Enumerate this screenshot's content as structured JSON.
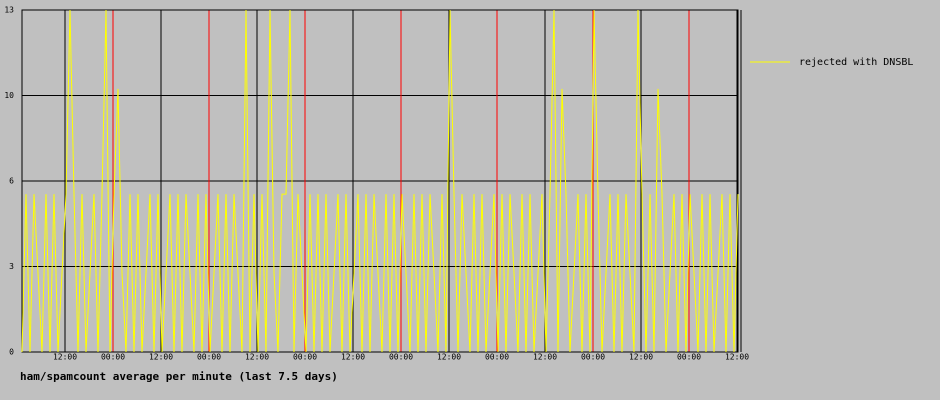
{
  "chart_data": {
    "type": "line",
    "title": "ham/spamcount average per minute (last 7.5 days)",
    "x": [
      0,
      1,
      2,
      3,
      4,
      5,
      6,
      7,
      8,
      9,
      10,
      11,
      12,
      13,
      14,
      15,
      16,
      17,
      18,
      19,
      20,
      21,
      22,
      23,
      24,
      25,
      26,
      27,
      28,
      29,
      30,
      31,
      32,
      33,
      34,
      35,
      36,
      37,
      38,
      39,
      40,
      41,
      42,
      43,
      44,
      45,
      46,
      47,
      48,
      49,
      50,
      51,
      52,
      53,
      54,
      55,
      56,
      57,
      58,
      59,
      60,
      61,
      62,
      63,
      64,
      65,
      66,
      67,
      68,
      69,
      70,
      71,
      72,
      73,
      74,
      75,
      76,
      77,
      78,
      79,
      80,
      81,
      82,
      83,
      84,
      85,
      86,
      87,
      88,
      89,
      90,
      91,
      92,
      93,
      94,
      95,
      96,
      97,
      98,
      99,
      100,
      101,
      102,
      103,
      104,
      105,
      106,
      107,
      108,
      109,
      110,
      111,
      112,
      113,
      114,
      115,
      116,
      117,
      118,
      119,
      120,
      121,
      122,
      123,
      124,
      125,
      126,
      127,
      128,
      129,
      130,
      131,
      132,
      133,
      134,
      135,
      136,
      137,
      138,
      139,
      140,
      141,
      142,
      143,
      144,
      145,
      146,
      147,
      148,
      149,
      150,
      151,
      152,
      153,
      154,
      155,
      156,
      157,
      158,
      159,
      160,
      161,
      162,
      163,
      164,
      165,
      166,
      167,
      168,
      169,
      170,
      171,
      172,
      173,
      174,
      175,
      176,
      177,
      178,
      179
    ],
    "series": [
      {
        "name": "rejected with DNSBL",
        "color": "#ffff00",
        "values": [
          0,
          6,
          0,
          6,
          3,
          0,
          6,
          0,
          6,
          0,
          3,
          6,
          13,
          6,
          0,
          6,
          0,
          3,
          6,
          0,
          6,
          13,
          0,
          6,
          10,
          3,
          0,
          6,
          0,
          6,
          0,
          3,
          6,
          0,
          6,
          0,
          3,
          6,
          0,
          6,
          0,
          6,
          3,
          0,
          6,
          0,
          6,
          0,
          3,
          6,
          0,
          6,
          0,
          6,
          3,
          0,
          13,
          0,
          6,
          0,
          6,
          0,
          13,
          3,
          0,
          6,
          6,
          13,
          0,
          6,
          3,
          0,
          6,
          0,
          6,
          0,
          6,
          0,
          3,
          6,
          0,
          6,
          0,
          3,
          6,
          0,
          6,
          0,
          6,
          3,
          0,
          6,
          0,
          6,
          0,
          6,
          3,
          0,
          6,
          0,
          6,
          0,
          6,
          3,
          0,
          6,
          0,
          13,
          6,
          0,
          6,
          3,
          0,
          6,
          0,
          6,
          0,
          3,
          6,
          0,
          6,
          0,
          6,
          3,
          0,
          6,
          0,
          6,
          0,
          3,
          6,
          0,
          6,
          13,
          0,
          10,
          6,
          0,
          3,
          6,
          0,
          6,
          0,
          13,
          6,
          0,
          3,
          6,
          0,
          6,
          0,
          6,
          3,
          0,
          13,
          6,
          0,
          6,
          0,
          10,
          6,
          0,
          3,
          6,
          0,
          6,
          0,
          6,
          3,
          0,
          6,
          0,
          6,
          0,
          3,
          6,
          0,
          6,
          0,
          6
        ]
      }
    ],
    "xlim": [
      0,
      179
    ],
    "xticks": [
      {
        "value": 10.75,
        "label": "12:00"
      },
      {
        "value": 22.75,
        "label": "00:00"
      },
      {
        "value": 34.75,
        "label": "12:00"
      },
      {
        "value": 46.75,
        "label": "00:00"
      },
      {
        "value": 58.75,
        "label": "12:00"
      },
      {
        "value": 70.75,
        "label": "00:00"
      },
      {
        "value": 82.75,
        "label": "12:00"
      },
      {
        "value": 94.75,
        "label": "00:00"
      },
      {
        "value": 106.75,
        "label": "12:00"
      },
      {
        "value": 118.75,
        "label": "00:00"
      },
      {
        "value": 130.75,
        "label": "12:00"
      },
      {
        "value": 142.75,
        "label": "00:00"
      },
      {
        "value": 154.75,
        "label": "12:00"
      },
      {
        "value": 166.75,
        "label": "00:00"
      },
      {
        "value": 178.75,
        "label": "12:00"
      }
    ],
    "xgrid_colors": [
      "#000000",
      "#ff0000"
    ],
    "ylim": [
      0,
      13
    ],
    "yticks": [
      0,
      {
        "value": 3.25,
        "label": "3"
      },
      {
        "value": 6.5,
        "label": "6"
      },
      {
        "value": 9.75,
        "label": "10"
      },
      13
    ],
    "grid": true,
    "legend": "right"
  }
}
